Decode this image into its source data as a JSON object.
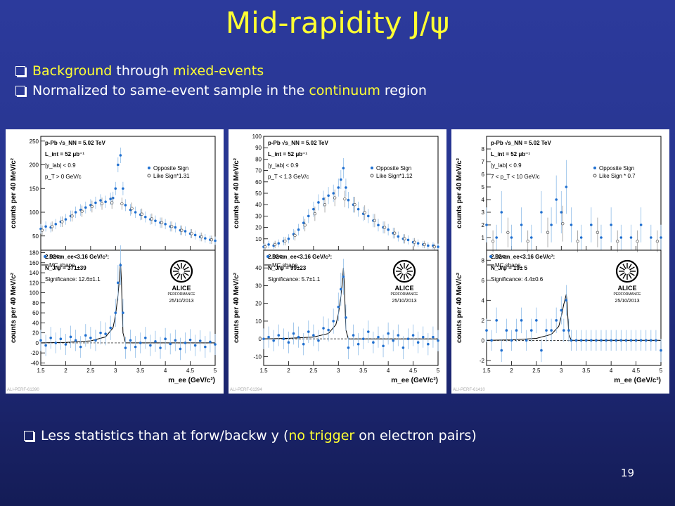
{
  "title": "Mid-rapidity J/ψ",
  "bullets": {
    "b1": {
      "hl1": "Background",
      "t1": " through ",
      "hl2": "mixed-events"
    },
    "b2": {
      "t1": "Normalized to same-event sample in the ",
      "hl1": "continuum",
      "t2": " region"
    },
    "b3": {
      "t1": "Less statistics than at forw/backw y (",
      "hl1": "no trigger",
      "t2": " on electron pairs)"
    }
  },
  "page_number": "19",
  "chart_data": [
    {
      "type": "scatter",
      "id": "ALI-PERF-61390",
      "xlabel": "m_ee (GeV/c²)",
      "xlim": [
        1.5,
        5
      ],
      "xticks": [
        "1.5",
        "2",
        "2.5",
        "3",
        "3.5",
        "4",
        "4.5",
        "5"
      ],
      "top": {
        "ylabel": "counts per 40 MeV/c²",
        "ylim": [
          20,
          260
        ],
        "yticks": [
          50,
          100,
          150,
          200,
          250
        ],
        "text": [
          "p-Pb √s_NN = 5.02 TeV",
          "L_int = 52 μb⁻¹",
          "|y_lab| < 0.9",
          "p_T > 0 GeV/c"
        ],
        "legend": [
          "Opposite Sign",
          "Like Sign*1.31"
        ],
        "series": [
          {
            "name": "Opposite Sign",
            "x": [
              1.5,
              1.6,
              1.7,
              1.8,
              1.9,
              2.0,
              2.1,
              2.2,
              2.3,
              2.4,
              2.5,
              2.6,
              2.7,
              2.8,
              2.9,
              2.95,
              3.0,
              3.05,
              3.1,
              3.15,
              3.2,
              3.3,
              3.4,
              3.5,
              3.6,
              3.7,
              3.8,
              3.9,
              4.0,
              4.1,
              4.2,
              4.3,
              4.4,
              4.5,
              4.6,
              4.7,
              4.8,
              4.9,
              5.0
            ],
            "y": [
              65,
              70,
              68,
              75,
              80,
              85,
              92,
              100,
              105,
              110,
              115,
              120,
              125,
              122,
              128,
              130,
              150,
              200,
              220,
              150,
              115,
              105,
              100,
              95,
              90,
              85,
              82,
              78,
              75,
              70,
              68,
              62,
              60,
              55,
              52,
              48,
              45,
              42,
              40
            ]
          },
          {
            "name": "Like Sign*1.31",
            "x": [
              1.5,
              1.7,
              1.9,
              2.1,
              2.3,
              2.5,
              2.7,
              2.9,
              3.1,
              3.3,
              3.5,
              3.7,
              3.9,
              4.1,
              4.3,
              4.5,
              4.7,
              4.9
            ],
            "y": [
              62,
              70,
              80,
              92,
              102,
              112,
              118,
              120,
              118,
              108,
              96,
              86,
              78,
              70,
              62,
              55,
              48,
              42
            ]
          }
        ]
      },
      "bottom": {
        "ylabel": "counts per 40 MeV/c²",
        "ylim": [
          -45,
          185
        ],
        "yticks": [
          -40,
          -20,
          0,
          20,
          40,
          60,
          80,
          100,
          120,
          140,
          160,
          180
        ],
        "legend": [
          "Data",
          "MC shape"
        ],
        "text": [
          "2.92<m_ee<3.16 GeV/c²:",
          "N_J/ψ = 371±39",
          "Significance: 12.6±1.1"
        ],
        "stamp": {
          "name": "ALICE",
          "sub": "PERFORMANCE",
          "date": "25/10/2013"
        },
        "data": {
          "x": [
            1.5,
            1.6,
            1.7,
            1.8,
            1.9,
            2.0,
            2.1,
            2.2,
            2.3,
            2.4,
            2.5,
            2.6,
            2.7,
            2.8,
            2.9,
            3.0,
            3.05,
            3.1,
            3.15,
            3.2,
            3.3,
            3.4,
            3.5,
            3.6,
            3.7,
            3.8,
            3.9,
            4.0,
            4.1,
            4.2,
            4.3,
            4.4,
            4.5,
            4.6,
            4.7,
            4.8,
            4.9,
            5.0
          ],
          "y": [
            5,
            -5,
            10,
            0,
            8,
            -3,
            12,
            5,
            -8,
            15,
            10,
            5,
            20,
            18,
            30,
            60,
            120,
            155,
            60,
            -10,
            5,
            -8,
            0,
            10,
            -5,
            3,
            -10,
            8,
            -2,
            5,
            -12,
            0,
            6,
            -5,
            4,
            -8,
            2,
            -3
          ]
        },
        "mc": {
          "x": [
            1.5,
            2.0,
            2.5,
            2.8,
            2.95,
            3.0,
            3.05,
            3.08,
            3.1,
            3.12,
            3.15,
            3.2,
            3.5,
            5.0
          ],
          "y": [
            0,
            1,
            4,
            12,
            30,
            55,
            95,
            130,
            160,
            120,
            20,
            0,
            0,
            0
          ]
        }
      }
    },
    {
      "type": "scatter",
      "id": "ALI-PERF-61394",
      "xlabel": "m_ee (GeV/c²)",
      "xlim": [
        1.5,
        5
      ],
      "xticks": [
        "1.5",
        "2",
        "2.5",
        "3",
        "3.5",
        "4",
        "4.5",
        "5"
      ],
      "top": {
        "ylabel": "counts per 40 MeV/c²",
        "ylim": [
          0,
          100
        ],
        "yticks": [
          10,
          20,
          30,
          40,
          50,
          60,
          70,
          80,
          90,
          100
        ],
        "yticklabels": [
          "10",
          "20",
          "30",
          "40",
          "50",
          "60",
          "70",
          "80",
          "90",
          "100"
        ],
        "text": [
          "p-Pb √s_NN = 5.02 TeV",
          "L_int = 52 μb⁻¹",
          "|y_lab| < 0.9",
          "p_T < 1.3 GeV/c"
        ],
        "legend": [
          "Opposite Sign",
          "Like Sign*1.12"
        ],
        "series": [
          {
            "name": "Opposite Sign",
            "x": [
              1.5,
              1.6,
              1.7,
              1.8,
              1.9,
              2.0,
              2.1,
              2.2,
              2.3,
              2.4,
              2.5,
              2.6,
              2.7,
              2.8,
              2.9,
              3.0,
              3.05,
              3.1,
              3.15,
              3.2,
              3.3,
              3.4,
              3.5,
              3.6,
              3.7,
              3.8,
              3.9,
              4.0,
              4.1,
              4.2,
              4.3,
              4.4,
              4.5,
              4.6,
              4.7,
              4.8,
              4.9,
              5.0
            ],
            "y": [
              3,
              5,
              4,
              6,
              8,
              10,
              14,
              18,
              24,
              30,
              36,
              42,
              45,
              48,
              50,
              55,
              62,
              72,
              55,
              44,
              40,
              36,
              32,
              30,
              26,
              22,
              20,
              18,
              15,
              12,
              10,
              9,
              7,
              6,
              5,
              4,
              4,
              3
            ]
          },
          {
            "name": "Like Sign*1.12",
            "x": [
              1.5,
              1.7,
              1.9,
              2.1,
              2.3,
              2.5,
              2.7,
              2.9,
              3.1,
              3.3,
              3.5,
              3.7,
              3.9,
              4.1,
              4.3,
              4.5,
              4.7,
              4.9
            ],
            "y": [
              3,
              5,
              8,
              13,
              22,
              32,
              40,
              46,
              45,
              40,
              33,
              26,
              20,
              15,
              10,
              7,
              5,
              3
            ]
          }
        ]
      },
      "bottom": {
        "ylabel": "counts per 40 MeV/c²",
        "ylim": [
          -15,
          50
        ],
        "yticks": [
          -10,
          0,
          10,
          20,
          30,
          40
        ],
        "legend": [
          "Data",
          "MC shape"
        ],
        "text": [
          "2.92<m_ee<3.16 GeV/c²:",
          "N_J/ψ = 99±23",
          "Significance: 5.7±1.1"
        ],
        "stamp": {
          "name": "ALICE",
          "sub": "PERFORMANCE",
          "date": "25/10/2013"
        },
        "data": {
          "x": [
            1.5,
            1.6,
            1.7,
            1.8,
            1.9,
            2.0,
            2.1,
            2.2,
            2.3,
            2.4,
            2.5,
            2.6,
            2.7,
            2.8,
            2.9,
            3.0,
            3.05,
            3.1,
            3.15,
            3.2,
            3.3,
            3.4,
            3.5,
            3.6,
            3.7,
            3.8,
            3.9,
            4.0,
            4.1,
            4.2,
            4.3,
            4.4,
            4.5,
            4.6,
            4.7,
            4.8,
            4.9,
            5.0
          ],
          "y": [
            0,
            1,
            -1,
            2,
            0,
            -2,
            3,
            1,
            -3,
            4,
            2,
            -1,
            6,
            5,
            10,
            18,
            28,
            35,
            12,
            -5,
            2,
            -3,
            0,
            4,
            -2,
            1,
            -4,
            3,
            -1,
            2,
            -5,
            0,
            2,
            -2,
            1,
            -3,
            1,
            -1
          ]
        },
        "mc": {
          "x": [
            1.5,
            2.0,
            2.5,
            2.8,
            2.95,
            3.0,
            3.05,
            3.08,
            3.1,
            3.12,
            3.15,
            3.2,
            3.5,
            5.0
          ],
          "y": [
            0,
            0.3,
            1,
            3,
            8,
            14,
            24,
            32,
            40,
            30,
            5,
            0,
            0,
            0
          ]
        }
      }
    },
    {
      "type": "scatter",
      "id": "ALI-PERF-61410",
      "xlabel": "m_ee (GeV/c²)",
      "xlim": [
        1.5,
        5
      ],
      "xticks": [
        "1.5",
        "2",
        "2.5",
        "3",
        "3.5",
        "4",
        "4.5",
        "5"
      ],
      "top": {
        "ylabel": "counts per 40 MeV/c²",
        "ylim": [
          0,
          9
        ],
        "yticks": [
          1,
          2,
          3,
          4,
          5,
          6,
          7,
          8
        ],
        "text": [
          "p-Pb √s_NN = 5.02 TeV",
          "L_int = 52 μb⁻¹",
          "|y_lab| < 0.9",
          "7 < p_T < 10 GeV/c"
        ],
        "legend": [
          "Opposite Sign",
          "Like Sign * 0.7"
        ],
        "series": [
          {
            "name": "Opposite Sign",
            "x": [
              1.5,
              1.7,
              1.8,
              2.0,
              2.2,
              2.4,
              2.6,
              2.8,
              2.9,
              3.0,
              3.1,
              3.2,
              3.4,
              3.6,
              3.8,
              4.0,
              4.2,
              4.4,
              4.6,
              4.8,
              5.0
            ],
            "y": [
              2,
              1,
              3,
              1,
              2,
              1,
              3,
              2,
              4,
              3,
              5,
              2,
              1,
              2,
              1,
              2,
              1,
              1,
              2,
              1,
              1
            ]
          },
          {
            "name": "Like Sign * 0.7",
            "x": [
              1.6,
              1.9,
              2.3,
              2.7,
              3.0,
              3.3,
              3.7,
              4.1,
              4.5,
              4.9
            ],
            "y": [
              0.7,
              1.4,
              0.7,
              1.4,
              2.1,
              0.7,
              1.4,
              0.7,
              0.7,
              0.7
            ]
          }
        ]
      },
      "bottom": {
        "ylabel": "counts per 40 MeV/c²",
        "ylim": [
          -2.5,
          9
        ],
        "yticks": [
          -2,
          0,
          2,
          4,
          6,
          8
        ],
        "legend": [
          "Data",
          "MC shape"
        ],
        "text": [
          "2.92<m_ee<3.16 GeV/c²:",
          "N_J/ψ = 19± 5",
          "Significance: 4.4±0.6"
        ],
        "stamp": {
          "name": "ALICE",
          "sub": "PERFORMANCE",
          "date": "25/10/2013"
        },
        "data": {
          "x": [
            1.5,
            1.6,
            1.7,
            1.8,
            1.9,
            2.0,
            2.1,
            2.2,
            2.3,
            2.4,
            2.5,
            2.6,
            2.7,
            2.8,
            2.9,
            3.0,
            3.05,
            3.1,
            3.15,
            3.2,
            3.3,
            3.4,
            3.5,
            3.6,
            3.7,
            3.8,
            3.9,
            4.0,
            4.1,
            4.2,
            4.3,
            4.4,
            4.5,
            4.6,
            4.7,
            4.8,
            4.9,
            5.0
          ],
          "y": [
            1,
            0,
            2,
            -1,
            1,
            0,
            1,
            2,
            0,
            1,
            2,
            -1,
            1,
            1,
            2,
            3,
            1,
            4,
            1,
            0,
            0,
            0,
            0,
            0,
            0,
            0,
            0,
            0,
            0,
            0,
            0,
            0,
            0,
            0,
            0,
            0,
            0,
            -1
          ]
        },
        "mc": {
          "x": [
            1.5,
            2.0,
            2.5,
            2.8,
            2.95,
            3.0,
            3.05,
            3.08,
            3.1,
            3.12,
            3.15,
            3.2,
            3.5,
            5.0
          ],
          "y": [
            0,
            0.05,
            0.2,
            0.6,
            1.4,
            2.4,
            3.6,
            4.2,
            4.6,
            3.5,
            0.6,
            0,
            0,
            0
          ]
        }
      }
    }
  ]
}
